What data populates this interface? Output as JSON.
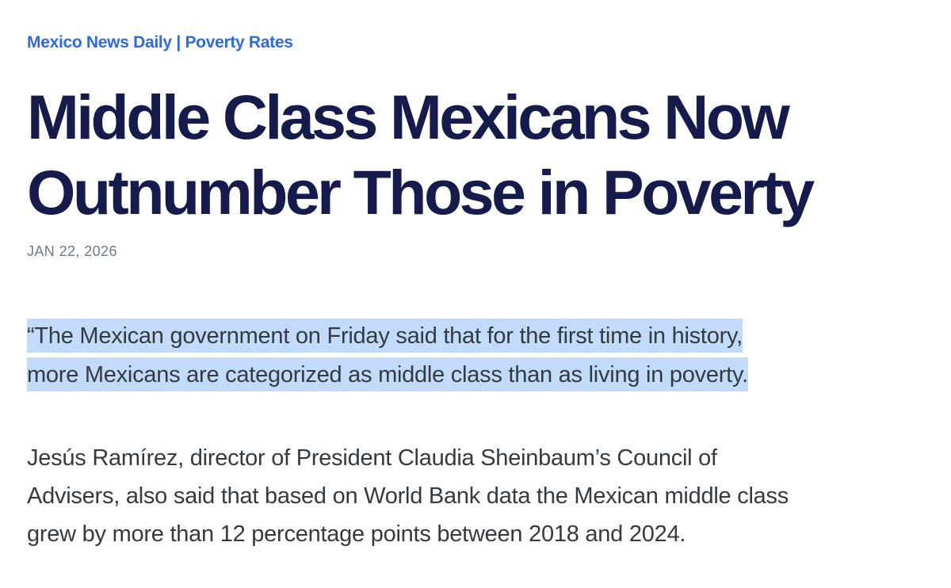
{
  "source_line": "Mexico News Daily | Poverty Rates",
  "headline": {
    "line1": "Middle Class Mexicans Now",
    "line2": "Outnumber Those in Poverty"
  },
  "date": "JAN 22, 2026",
  "quote": {
    "line1": "“The Mexican government on Friday said that for the first time in history,",
    "line2": "more Mexicans are categorized as middle class than as living in poverty."
  },
  "paragraph": {
    "line1": "Jesús Ramírez, director of President Claudia Sheinbaum’s Council of",
    "line2": "Advisers, also said that based on World Bank data the Mexican middle class",
    "line3": "grew by more than 12 percentage points between 2018 and 2024."
  },
  "colors": {
    "source_link": "#2f6ae4",
    "headline": "#151b4d",
    "highlight": "#c2dbfb",
    "body_text": "#333a40",
    "date": "#6e7a86"
  }
}
